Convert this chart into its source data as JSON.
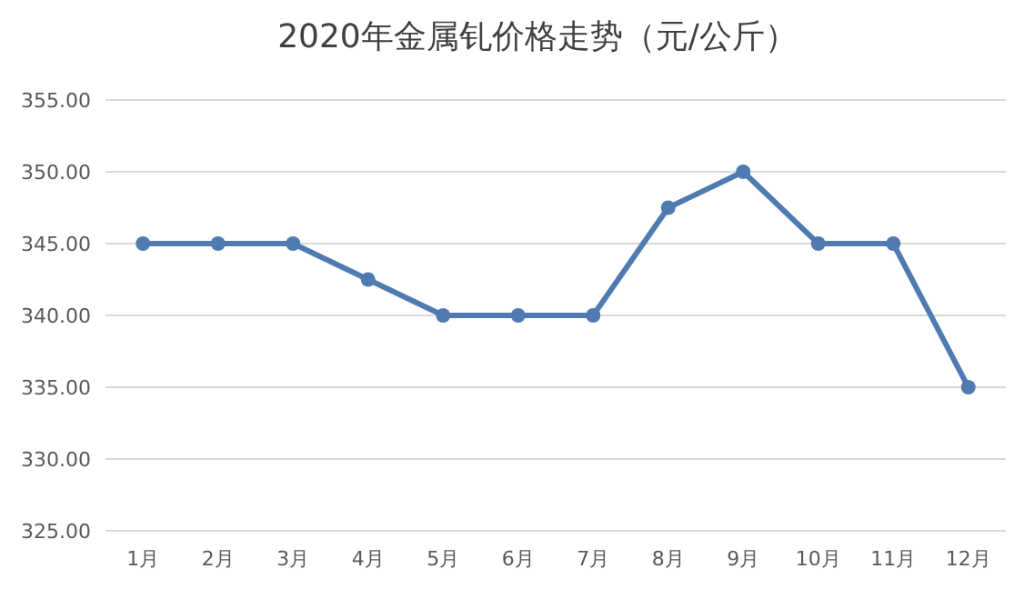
{
  "chart_data": {
    "type": "line",
    "title": "2020年金属钆价格走势（元/公斤）",
    "categories": [
      "1月",
      "2月",
      "3月",
      "4月",
      "5月",
      "6月",
      "7月",
      "8月",
      "9月",
      "10月",
      "11月",
      "12月"
    ],
    "series": [
      {
        "color": "#4f7bb0",
        "values": [
          345,
          345,
          345,
          342.5,
          340,
          340,
          340,
          347.5,
          350,
          345,
          345,
          335
        ]
      }
    ],
    "ylim": [
      325,
      355
    ],
    "yticks": [
      {
        "value": 325,
        "label": "325.00"
      },
      {
        "value": 330,
        "label": "330.00"
      },
      {
        "value": 335,
        "label": "335.00"
      },
      {
        "value": 340,
        "label": "340.00"
      },
      {
        "value": 345,
        "label": "345.00"
      },
      {
        "value": 350,
        "label": "350.00"
      },
      {
        "value": 355,
        "label": "355.00"
      }
    ],
    "grid": "y",
    "marker": "circle",
    "line_style": "solid"
  }
}
